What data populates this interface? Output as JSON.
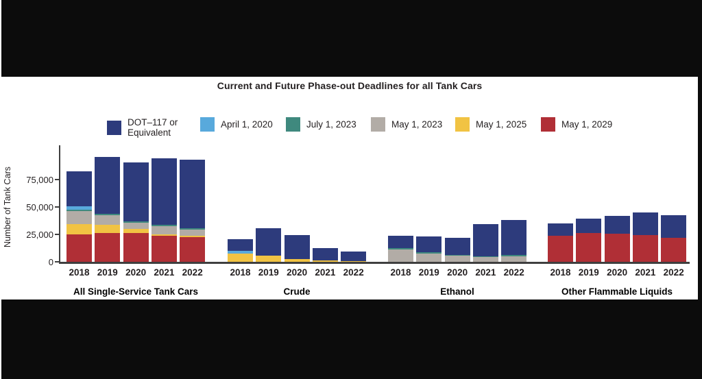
{
  "window": {
    "frame_background": "#0c0c0c",
    "panel_background": "#ffffff"
  },
  "chart_data": {
    "type": "bar",
    "subtype": "stacked",
    "title": "Current and Future Phase-out Deadlines for all Tank Cars",
    "ylabel": "Number of Tank Cars",
    "ylim": [
      0,
      100000
    ],
    "grid": "off",
    "legend_position": "top",
    "y_ticks": [
      {
        "value": 0,
        "label": "0"
      },
      {
        "value": 25000,
        "label": "25,000"
      },
      {
        "value": 50000,
        "label": "50,000"
      },
      {
        "value": 75000,
        "label": "75,000"
      }
    ],
    "years": [
      "2018",
      "2019",
      "2020",
      "2021",
      "2022"
    ],
    "legend": [
      {
        "id": "dot117",
        "label": "DOT–117 or\nEquivalent",
        "color": "#2d3b7c"
      },
      {
        "id": "apr_2020",
        "label": "April 1, 2020",
        "color": "#58a9dc"
      },
      {
        "id": "jul_2023",
        "label": "July 1, 2023",
        "color": "#3f897e"
      },
      {
        "id": "may_2023",
        "label": "May 1, 2023",
        "color": "#b2aca6"
      },
      {
        "id": "may_2025",
        "label": "May 1, 2025",
        "color": "#f1c343"
      },
      {
        "id": "may_2029",
        "label": "May 1, 2029",
        "color": "#b02f36"
      }
    ],
    "stack_order": [
      "may_2029",
      "may_2025",
      "may_2023",
      "jul_2023",
      "apr_2020",
      "dot117"
    ],
    "groups": [
      {
        "label": "All Single-Service Tank Cars",
        "series": {
          "may_2029": [
            25000,
            26300,
            26300,
            23800,
            22500
          ],
          "may_2025": [
            9400,
            7500,
            3800,
            1300,
            1300
          ],
          "may_2023": [
            11900,
            8800,
            5600,
            7500,
            5600
          ],
          "jul_2023": [
            1500,
            1300,
            1300,
            1300,
            1300
          ],
          "apr_2020": [
            2700,
            0,
            0,
            0,
            0
          ],
          "dot117": [
            32000,
            51600,
            53600,
            60600,
            62300
          ]
        }
      },
      {
        "label": "Crude",
        "series": {
          "may_2029": [
            0,
            0,
            0,
            0,
            0
          ],
          "may_2025": [
            7500,
            5600,
            2500,
            1000,
            600
          ],
          "may_2023": [
            0,
            0,
            0,
            0,
            0
          ],
          "jul_2023": [
            0,
            0,
            0,
            0,
            0
          ],
          "apr_2020": [
            2400,
            0,
            0,
            0,
            0
          ],
          "dot117": [
            11000,
            24800,
            21700,
            11700,
            8800
          ]
        }
      },
      {
        "label": "Ethanol",
        "series": {
          "may_2029": [
            0,
            0,
            0,
            0,
            0
          ],
          "may_2025": [
            0,
            0,
            0,
            0,
            0
          ],
          "may_2023": [
            11500,
            7500,
            5500,
            4400,
            4800
          ],
          "jul_2023": [
            1200,
            1500,
            700,
            700,
            1400
          ],
          "apr_2020": [
            0,
            0,
            0,
            0,
            0
          ],
          "dot117": [
            10800,
            14200,
            15700,
            29300,
            31900
          ]
        }
      },
      {
        "label": "Other Flammable Liquids",
        "series": {
          "may_2029": [
            24000,
            26400,
            25800,
            24600,
            21900
          ],
          "may_2025": [
            0,
            0,
            0,
            0,
            0
          ],
          "may_2023": [
            0,
            0,
            0,
            0,
            0
          ],
          "jul_2023": [
            0,
            0,
            0,
            0,
            0
          ],
          "apr_2020": [
            0,
            0,
            0,
            0,
            0
          ],
          "dot117": [
            11000,
            13200,
            16000,
            20400,
            20400
          ]
        }
      }
    ]
  }
}
